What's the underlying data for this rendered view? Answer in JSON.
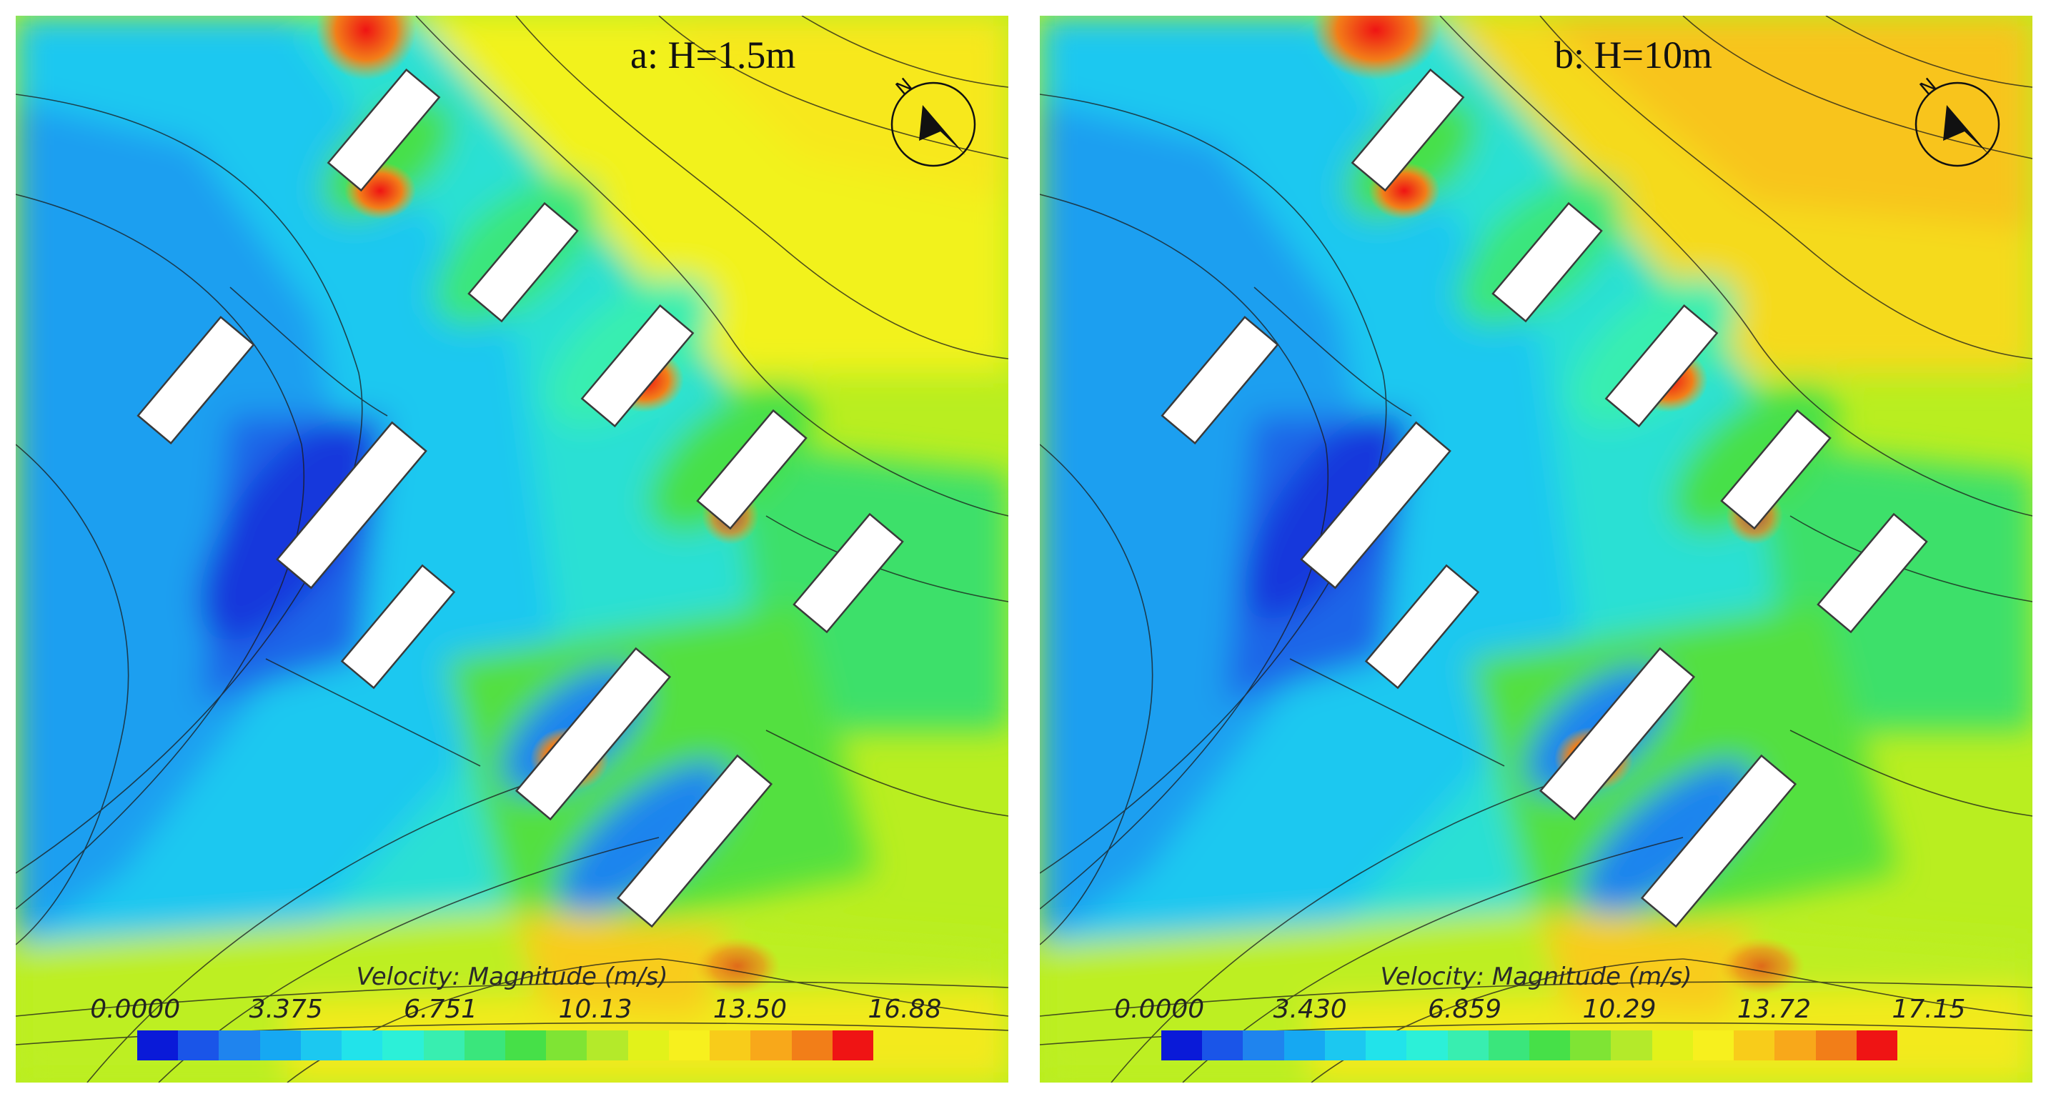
{
  "panels": [
    {
      "id": "a",
      "title": "a: H=1.5m",
      "legend_title": "Velocity: Magnitude (m/s)",
      "legend_ticks": [
        "0.0000",
        "3.375",
        "6.751",
        "10.13",
        "13.50",
        "16.88"
      ]
    },
    {
      "id": "b",
      "title": "b: H=10m",
      "legend_title": "Velocity: Magnitude (m/s)",
      "legend_ticks": [
        "0.0000",
        "3.430",
        "6.859",
        "10.29",
        "13.72",
        "17.15"
      ]
    }
  ],
  "compass_label": "N",
  "colormap": [
    "#0a1ad8",
    "#1a55e8",
    "#1f84ee",
    "#16a8f2",
    "#1cc8f0",
    "#22e3ea",
    "#2cf0d8",
    "#38eeb0",
    "#3ae67c",
    "#46e048",
    "#7fe434",
    "#b4ea2a",
    "#e2f21a",
    "#f7f01e",
    "#f8cc1a",
    "#f8a81a",
    "#f27e18",
    "#ef1414"
  ],
  "colors": {
    "building_fill": "#ffffff",
    "building_stroke": "#3a3a3a",
    "background": "#ffffff"
  }
}
